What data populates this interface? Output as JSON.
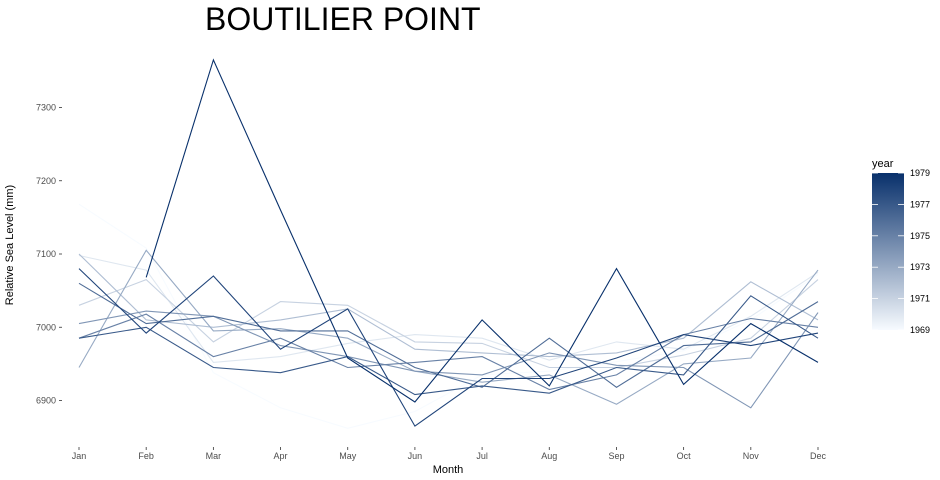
{
  "chart_data": {
    "type": "line",
    "title": "BOUTILIER POINT",
    "xlabel": "Month",
    "ylabel": "Relative Sea Level (mm)",
    "categories": [
      "Jan",
      "Feb",
      "Mar",
      "Apr",
      "May",
      "Jun",
      "Jul",
      "Aug",
      "Sep",
      "Oct",
      "Nov",
      "Dec"
    ],
    "yticks": [
      6900,
      7000,
      7100,
      7200,
      7300
    ],
    "ylim": [
      6845,
      7385
    ],
    "grid": false,
    "legend": {
      "title": "year",
      "position": "right",
      "type": "colorbar",
      "range": [
        1969,
        1979
      ],
      "ticks": [
        1969,
        1971,
        1973,
        1975,
        1977,
        1979
      ],
      "low_color": "#f7fbff",
      "high_color": "#08306b"
    },
    "series": [
      {
        "year": 1969,
        "values": [
          7168,
          7108,
          6938,
          6890,
          6862,
          6885,
          6935,
          6940,
          6953,
          6968,
          7010,
          7072
        ]
      },
      {
        "year": 1970,
        "values": [
          7098,
          7078,
          6952,
          6960,
          6978,
          6990,
          6985,
          6955,
          6980,
          6970,
          7015,
          7075
        ]
      },
      {
        "year": 1971,
        "values": [
          7030,
          7065,
          6980,
          7035,
          7030,
          6980,
          6978,
          6945,
          6945,
          6962,
          6985,
          7065
        ]
      },
      {
        "year": 1972,
        "values": [
          7100,
          7010,
          7000,
          7010,
          7025,
          6970,
          6965,
          6960,
          6965,
          6985,
          7062,
          7010
        ]
      },
      {
        "year": 1973,
        "values": [
          6945,
          7105,
          6995,
          6998,
          6985,
          6940,
          6925,
          6935,
          6895,
          6950,
          6958,
          7078
        ]
      },
      {
        "year": 1974,
        "values": [
          7005,
          7022,
          7015,
          6975,
          6960,
          6940,
          6935,
          6965,
          6948,
          6945,
          6890,
          7020
        ]
      },
      {
        "year": 1975,
        "values": [
          6985,
          7018,
          6960,
          6985,
          6945,
          6952,
          6960,
          6915,
          6935,
          6990,
          7012,
          7000
        ]
      },
      {
        "year": 1976,
        "values": [
          7060,
          7005,
          7015,
          6995,
          6995,
          6945,
          6918,
          6985,
          6918,
          6975,
          6980,
          7035
        ]
      },
      {
        "year": 1977,
        "values": [
          6985,
          7000,
          6945,
          6938,
          6960,
          6908,
          6920,
          6910,
          6945,
          6935,
          7043,
          6985
        ]
      },
      {
        "year": 1978,
        "values": [
          7080,
          6992,
          7070,
          6970,
          7025,
          6865,
          6930,
          6930,
          6958,
          6990,
          6975,
          6992
        ]
      },
      {
        "year": 1979,
        "values": [
          null,
          7068,
          7365,
          7160,
          6958,
          6898,
          7010,
          6920,
          7080,
          6922,
          7005,
          6952
        ]
      }
    ]
  }
}
